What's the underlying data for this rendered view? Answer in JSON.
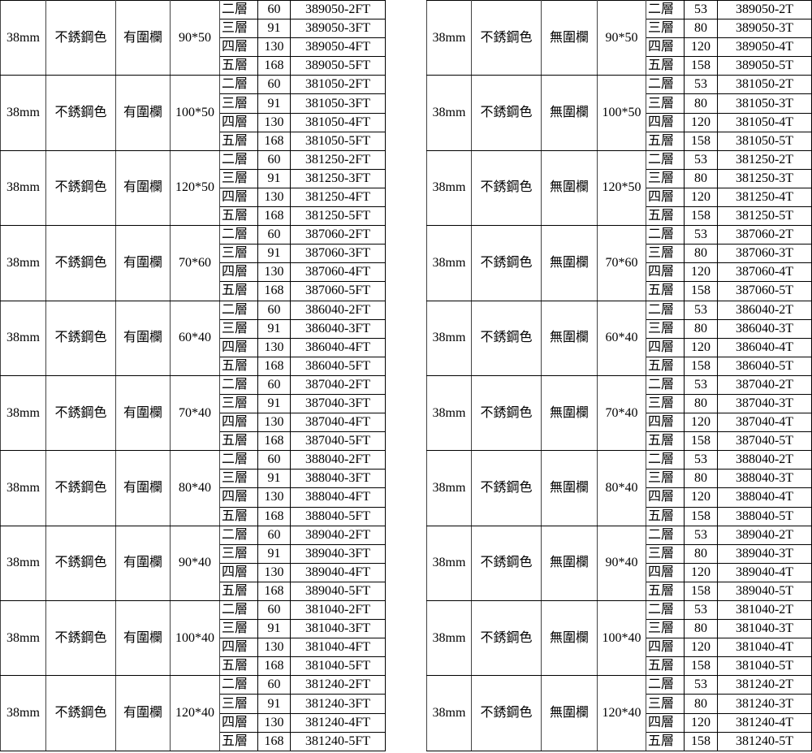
{
  "tables": [
    {
      "diameter": "38mm",
      "color": "不銹鋼色",
      "railing": "有圍欄",
      "groups": [
        {
          "size": "90*50",
          "rows": [
            [
              "二層",
              "60",
              "389050-2FT"
            ],
            [
              "三層",
              "91",
              "389050-3FT"
            ],
            [
              "四層",
              "130",
              "389050-4FT"
            ],
            [
              "五層",
              "168",
              "389050-5FT"
            ]
          ]
        },
        {
          "size": "100*50",
          "rows": [
            [
              "二層",
              "60",
              "381050-2FT"
            ],
            [
              "三層",
              "91",
              "381050-3FT"
            ],
            [
              "四層",
              "130",
              "381050-4FT"
            ],
            [
              "五層",
              "168",
              "381050-5FT"
            ]
          ]
        },
        {
          "size": "120*50",
          "rows": [
            [
              "二層",
              "60",
              "381250-2FT"
            ],
            [
              "三層",
              "91",
              "381250-3FT"
            ],
            [
              "四層",
              "130",
              "381250-4FT"
            ],
            [
              "五層",
              "168",
              "381250-5FT"
            ]
          ]
        },
        {
          "size": "70*60",
          "rows": [
            [
              "二層",
              "60",
              "387060-2FT"
            ],
            [
              "三層",
              "91",
              "387060-3FT"
            ],
            [
              "四層",
              "130",
              "387060-4FT"
            ],
            [
              "五層",
              "168",
              "387060-5FT"
            ]
          ]
        },
        {
          "size": "60*40",
          "rows": [
            [
              "二層",
              "60",
              "386040-2FT"
            ],
            [
              "三層",
              "91",
              "386040-3FT"
            ],
            [
              "四層",
              "130",
              "386040-4FT"
            ],
            [
              "五層",
              "168",
              "386040-5FT"
            ]
          ]
        },
        {
          "size": "70*40",
          "rows": [
            [
              "二層",
              "60",
              "387040-2FT"
            ],
            [
              "三層",
              "91",
              "387040-3FT"
            ],
            [
              "四層",
              "130",
              "387040-4FT"
            ],
            [
              "五層",
              "168",
              "387040-5FT"
            ]
          ]
        },
        {
          "size": "80*40",
          "rows": [
            [
              "二層",
              "60",
              "388040-2FT"
            ],
            [
              "三層",
              "91",
              "388040-3FT"
            ],
            [
              "四層",
              "130",
              "388040-4FT"
            ],
            [
              "五層",
              "168",
              "388040-5FT"
            ]
          ]
        },
        {
          "size": "90*40",
          "rows": [
            [
              "二層",
              "60",
              "389040-2FT"
            ],
            [
              "三層",
              "91",
              "389040-3FT"
            ],
            [
              "四層",
              "130",
              "389040-4FT"
            ],
            [
              "五層",
              "168",
              "389040-5FT"
            ]
          ]
        },
        {
          "size": "100*40",
          "rows": [
            [
              "二層",
              "60",
              "381040-2FT"
            ],
            [
              "三層",
              "91",
              "381040-3FT"
            ],
            [
              "四層",
              "130",
              "381040-4FT"
            ],
            [
              "五層",
              "168",
              "381040-5FT"
            ]
          ]
        },
        {
          "size": "120*40",
          "rows": [
            [
              "二層",
              "60",
              "381240-2FT"
            ],
            [
              "三層",
              "91",
              "381240-3FT"
            ],
            [
              "四層",
              "130",
              "381240-4FT"
            ],
            [
              "五層",
              "168",
              "381240-5FT"
            ]
          ]
        }
      ]
    },
    {
      "diameter": "38mm",
      "color": "不銹鋼色",
      "railing": "無圍欄",
      "groups": [
        {
          "size": "90*50",
          "rows": [
            [
              "二層",
              "53",
              "389050-2T"
            ],
            [
              "三層",
              "80",
              "389050-3T"
            ],
            [
              "四層",
              "120",
              "389050-4T"
            ],
            [
              "五層",
              "158",
              "389050-5T"
            ]
          ]
        },
        {
          "size": "100*50",
          "rows": [
            [
              "二層",
              "53",
              "381050-2T"
            ],
            [
              "三層",
              "80",
              "381050-3T"
            ],
            [
              "四層",
              "120",
              "381050-4T"
            ],
            [
              "五層",
              "158",
              "381050-5T"
            ]
          ]
        },
        {
          "size": "120*50",
          "rows": [
            [
              "二層",
              "53",
              "381250-2T"
            ],
            [
              "三層",
              "80",
              "381250-3T"
            ],
            [
              "四層",
              "120",
              "381250-4T"
            ],
            [
              "五層",
              "158",
              "381250-5T"
            ]
          ]
        },
        {
          "size": "70*60",
          "rows": [
            [
              "二層",
              "53",
              "387060-2T"
            ],
            [
              "三層",
              "80",
              "387060-3T"
            ],
            [
              "四層",
              "120",
              "387060-4T"
            ],
            [
              "五層",
              "158",
              "387060-5T"
            ]
          ]
        },
        {
          "size": "60*40",
          "rows": [
            [
              "二層",
              "53",
              "386040-2T"
            ],
            [
              "三層",
              "80",
              "386040-3T"
            ],
            [
              "四層",
              "120",
              "386040-4T"
            ],
            [
              "五層",
              "158",
              "386040-5T"
            ]
          ]
        },
        {
          "size": "70*40",
          "rows": [
            [
              "二層",
              "53",
              "387040-2T"
            ],
            [
              "三層",
              "80",
              "387040-3T"
            ],
            [
              "四層",
              "120",
              "387040-4T"
            ],
            [
              "五層",
              "158",
              "387040-5T"
            ]
          ]
        },
        {
          "size": "80*40",
          "rows": [
            [
              "二層",
              "53",
              "388040-2T"
            ],
            [
              "三層",
              "80",
              "388040-3T"
            ],
            [
              "四層",
              "120",
              "388040-4T"
            ],
            [
              "五層",
              "158",
              "388040-5T"
            ]
          ]
        },
        {
          "size": "90*40",
          "rows": [
            [
              "二層",
              "53",
              "389040-2T"
            ],
            [
              "三層",
              "80",
              "389040-3T"
            ],
            [
              "四層",
              "120",
              "389040-4T"
            ],
            [
              "五層",
              "158",
              "389040-5T"
            ]
          ]
        },
        {
          "size": "100*40",
          "rows": [
            [
              "二層",
              "53",
              "381040-2T"
            ],
            [
              "三層",
              "80",
              "381040-3T"
            ],
            [
              "四層",
              "120",
              "381040-4T"
            ],
            [
              "五層",
              "158",
              "381040-5T"
            ]
          ]
        },
        {
          "size": "120*40",
          "rows": [
            [
              "二層",
              "53",
              "381240-2T"
            ],
            [
              "三層",
              "80",
              "381240-3T"
            ],
            [
              "四層",
              "120",
              "381240-4T"
            ],
            [
              "五層",
              "158",
              "381240-5T"
            ]
          ]
        }
      ]
    }
  ]
}
